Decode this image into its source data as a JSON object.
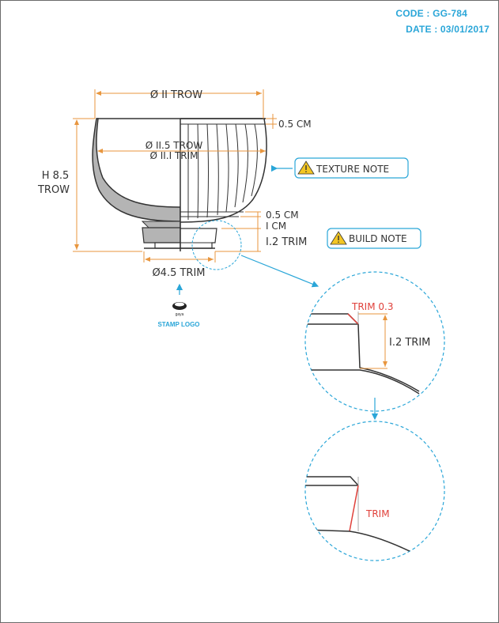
{
  "header": {
    "code": "CODE : GG-784",
    "date": "DATE : 03/01/2017"
  },
  "dimensions": {
    "top_diameter": "Ø II TROW",
    "rim_thickness": "0.5 CM",
    "inner_diameter_trow": "Ø II.5 TROW",
    "inner_diameter_trim": "Ø II.I TRIM",
    "height_value": "H 8.5",
    "height_unit": "TROW",
    "base_band": "0.5 CM",
    "foot_offset": "I CM",
    "foot_trim": "I.2 TRIM",
    "foot_diameter": "Ø4.5 TRIM"
  },
  "notes": {
    "texture": "TEXTURE NOTE",
    "build": "BUILD NOTE"
  },
  "stamp": {
    "brand": "gaya",
    "label": "STAMP LOGO"
  },
  "detail_1": {
    "trim_label": "TRIM 0.3",
    "height_label": "I.2 TRIM"
  },
  "detail_2": {
    "trim_label": "TRIM"
  },
  "colors": {
    "accent": "#2aa6d8",
    "dimension": "#e8963e",
    "trim_red": "#e0413b",
    "ink": "#333333"
  },
  "icons": [
    "warning-icon",
    "stamp-logo-icon",
    "arrow-up-icon",
    "arrow-down-icon"
  ]
}
